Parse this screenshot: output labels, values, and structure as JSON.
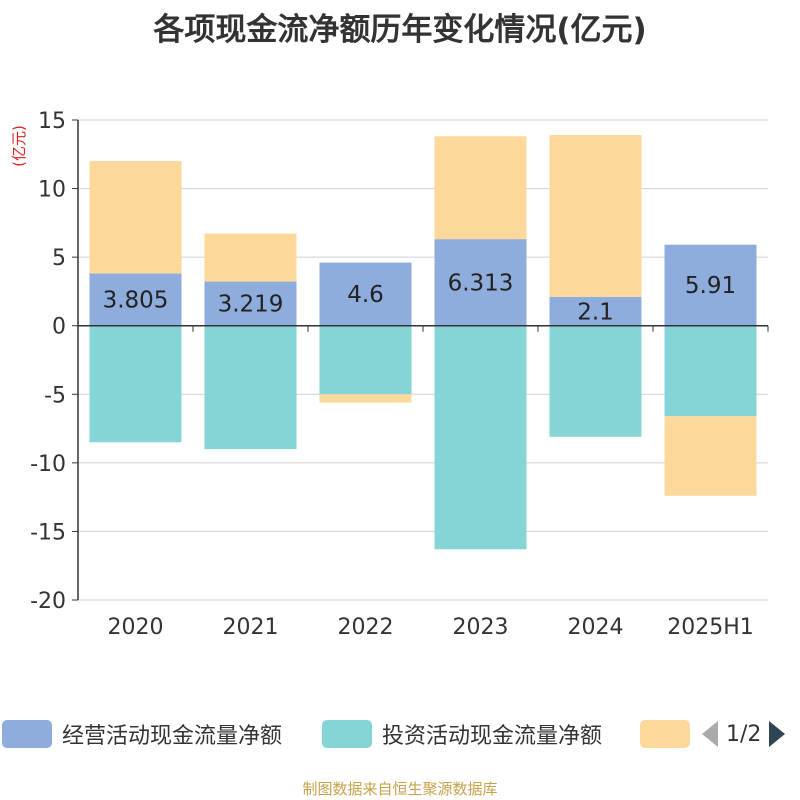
{
  "title": "各项现金流净额历年变化情况(亿元)",
  "source": "制图数据来自恒生聚源数据库",
  "chart_data": {
    "type": "bar",
    "stacked": true,
    "title": "各项现金流净额历年变化情况(亿元)",
    "ylabel": "(亿元)",
    "xlabel": "",
    "ylim": [
      -20,
      15
    ],
    "yticks": [
      15,
      10,
      5,
      0,
      -5,
      -10,
      -15,
      -20
    ],
    "grid": true,
    "legend_position": "bottom",
    "categories": [
      "2020",
      "2021",
      "2022",
      "2023",
      "2024",
      "2025H1"
    ],
    "series": [
      {
        "name": "经营活动现金流量净额",
        "color": "#8eacdc",
        "values": [
          3.805,
          3.219,
          4.6,
          6.313,
          2.1,
          5.91
        ],
        "labels": [
          "3.805",
          "3.219",
          "4.6",
          "6.313",
          "2.1",
          "5.91"
        ]
      },
      {
        "name": "投资活动现金流量净额",
        "color": "#86d5d6",
        "values": [
          -8.5,
          -9.0,
          -5.0,
          -16.3,
          -8.1,
          -6.6
        ]
      },
      {
        "name": "",
        "color": "#fdd89b",
        "values": [
          8.2,
          3.5,
          -0.6,
          7.5,
          11.8,
          -5.8
        ]
      }
    ]
  },
  "legend": {
    "items": [
      {
        "label": "经营活动现金流量净额",
        "color": "#8eacdc"
      },
      {
        "label": "投资活动现金流量净额",
        "color": "#86d5d6"
      },
      {
        "label": "",
        "color": "#fdd89b"
      }
    ],
    "page": "1/2"
  }
}
